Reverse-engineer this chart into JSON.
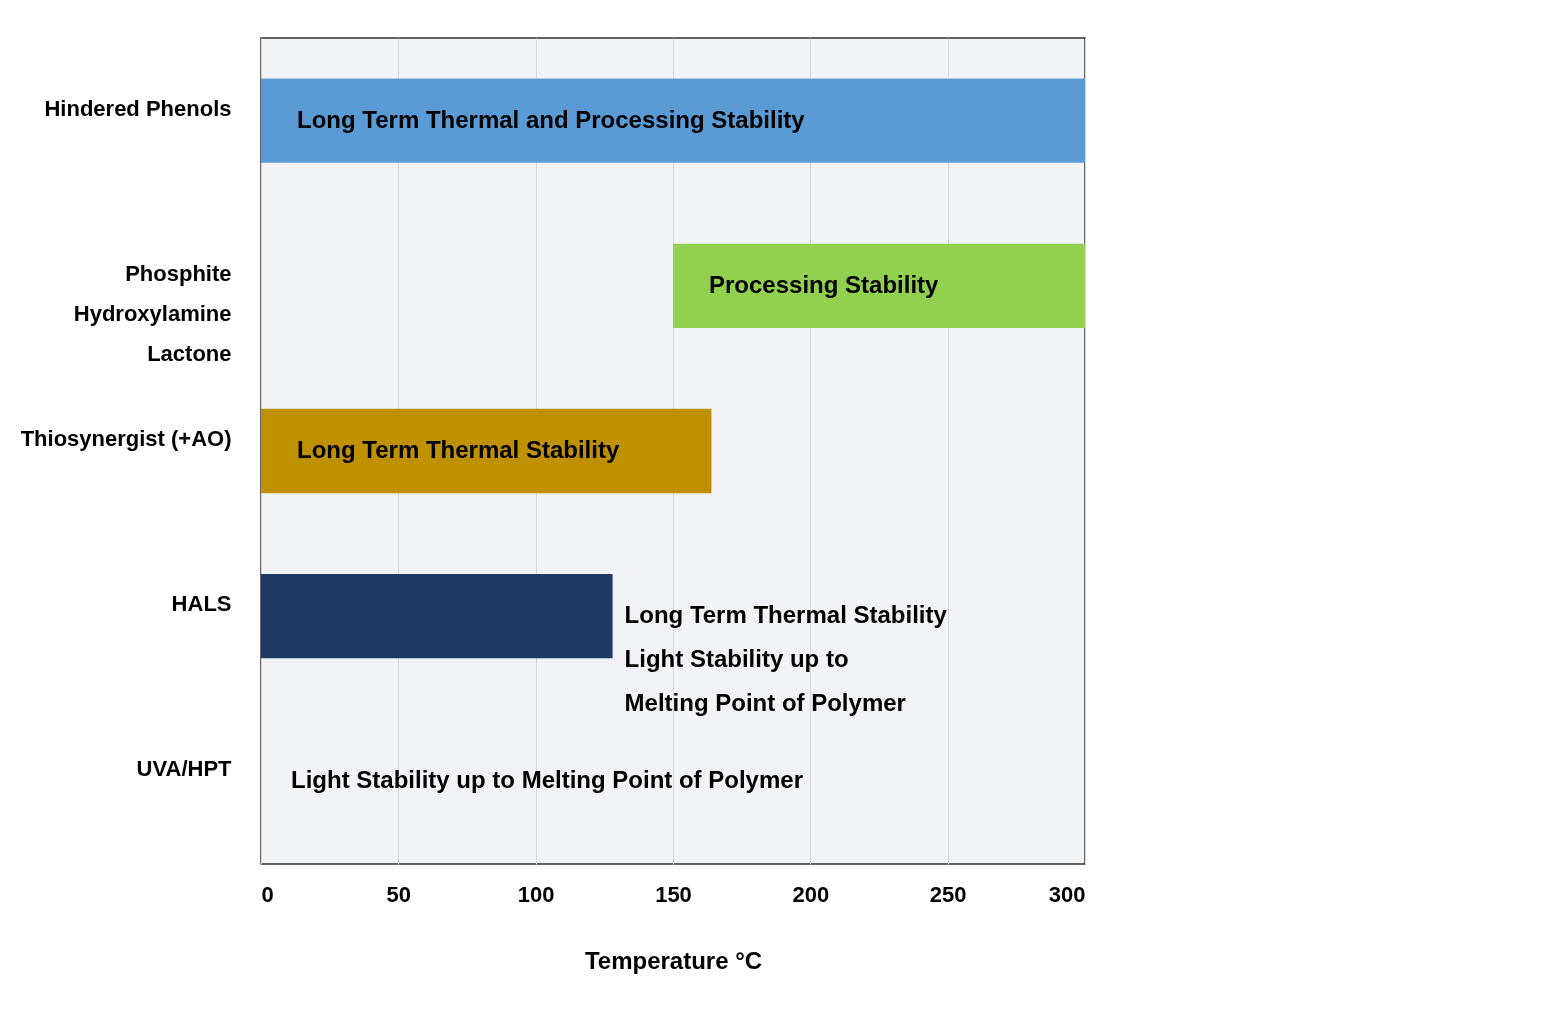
{
  "chart_data": {
    "type": "bar",
    "orientation": "horizontal",
    "categories": [
      "Hindered Phenols",
      "Phosphite\nHydroxylamine\nLactone",
      "Thiosynergist (+AO)",
      "HALS",
      "UVA/HPT"
    ],
    "base": [
      0,
      150,
      0,
      0,
      null
    ],
    "values": [
      300,
      150,
      164,
      128,
      null
    ],
    "colors": [
      "#5b9bd5",
      "#92d050",
      "#bf9000",
      "#1f3864",
      null
    ],
    "xlabel": "Temperature °C",
    "xlim": [
      0,
      300
    ],
    "xticks": [
      0,
      50,
      100,
      150,
      200,
      250,
      300
    ],
    "grid": "x",
    "legend": false,
    "annotations": [
      "Long Term Thermal and Processing Stability",
      "Processing Stability",
      "Long Term Thermal Stability",
      "Long Term Thermal Stability\nLight Stability up to\nMelting Point of Polymer",
      "Light Stability up to Melting Point of Polymer"
    ]
  }
}
